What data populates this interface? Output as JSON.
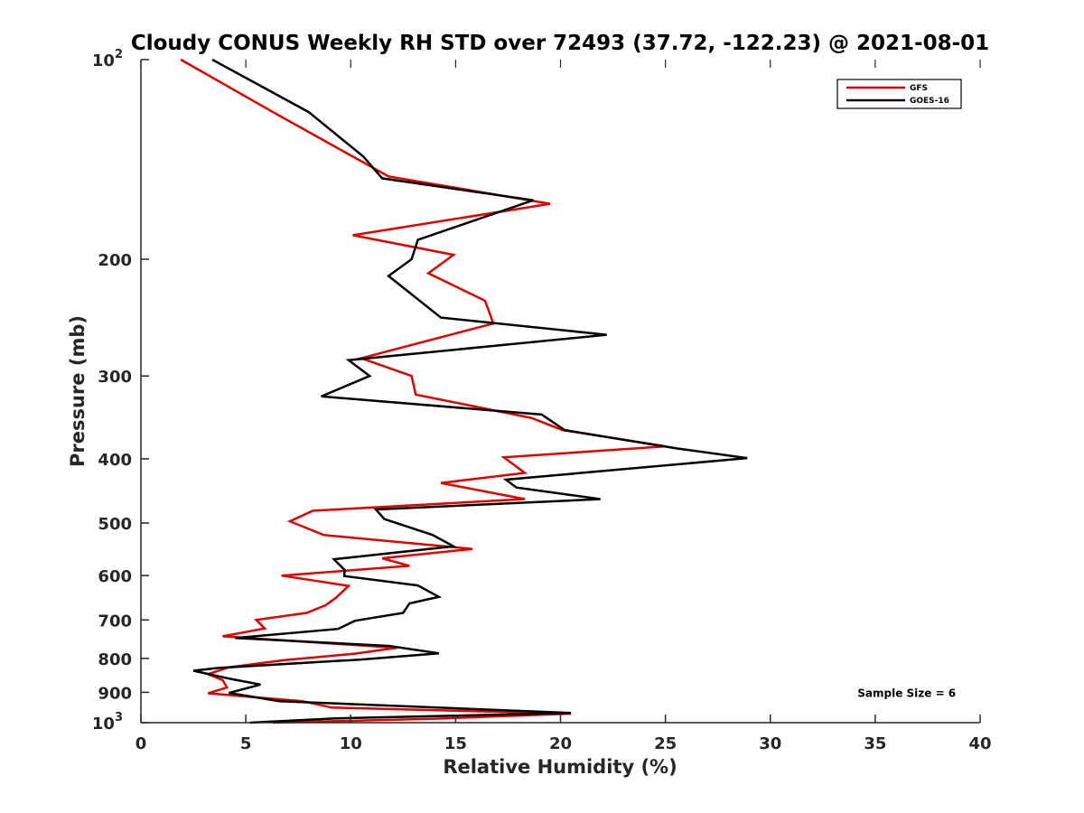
{
  "chart_data": {
    "type": "line",
    "title": "Cloudy CONUS Weekly RH STD over 72493 (37.72, -122.23) @ 2021-08-01",
    "xlabel": "Relative Humidity (%)",
    "ylabel": "Pressure (mb)",
    "xlim": [
      0,
      40
    ],
    "ylim": [
      100,
      1000
    ],
    "yscale": "log",
    "yreversed": true,
    "xticks": [
      0,
      5,
      10,
      15,
      20,
      25,
      30,
      35,
      40
    ],
    "xtick_labels": [
      "0",
      "5",
      "10",
      "15",
      "20",
      "25",
      "30",
      "35",
      "40"
    ],
    "yticks": [
      {
        "value": 100,
        "base": "10",
        "exp": "2"
      },
      {
        "value": 200,
        "base": "200",
        "exp": ""
      },
      {
        "value": 300,
        "base": "300",
        "exp": ""
      },
      {
        "value": 400,
        "base": "400",
        "exp": ""
      },
      {
        "value": 500,
        "base": "500",
        "exp": ""
      },
      {
        "value": 600,
        "base": "600",
        "exp": ""
      },
      {
        "value": 700,
        "base": "700",
        "exp": ""
      },
      {
        "value": 800,
        "base": "800",
        "exp": ""
      },
      {
        "value": 900,
        "base": "900",
        "exp": ""
      },
      {
        "value": 1000,
        "base": "10",
        "exp": "3"
      }
    ],
    "grid": false,
    "legend_position": "top-right",
    "series": [
      {
        "name": "GFS",
        "color": "#e00000",
        "points": [
          [
            1.9,
            100
          ],
          [
            6.5,
            121
          ],
          [
            11.8,
            150
          ],
          [
            19.5,
            165
          ],
          [
            10.1,
            184
          ],
          [
            14.9,
            197
          ],
          [
            13.7,
            210
          ],
          [
            16.4,
            231
          ],
          [
            16.8,
            250
          ],
          [
            10.5,
            282
          ],
          [
            12.9,
            300
          ],
          [
            13.1,
            320
          ],
          [
            18.6,
            347
          ],
          [
            20.1,
            362
          ],
          [
            25.0,
            383
          ],
          [
            17.3,
            398
          ],
          [
            18.3,
            420
          ],
          [
            14.3,
            435
          ],
          [
            18.3,
            460
          ],
          [
            8.2,
            479
          ],
          [
            7.1,
            497
          ],
          [
            8.7,
            521
          ],
          [
            15.8,
            547
          ],
          [
            11.5,
            565
          ],
          [
            12.8,
            580
          ],
          [
            6.7,
            600
          ],
          [
            9.9,
            622
          ],
          [
            9.3,
            648
          ],
          [
            8.8,
            665
          ],
          [
            7.9,
            683
          ],
          [
            5.5,
            700
          ],
          [
            5.9,
            721
          ],
          [
            3.9,
            741
          ],
          [
            12.2,
            771
          ],
          [
            10.2,
            787
          ],
          [
            6.8,
            805
          ],
          [
            4.2,
            825
          ],
          [
            3.2,
            845
          ],
          [
            3.9,
            863
          ],
          [
            4.1,
            885
          ],
          [
            3.2,
            903
          ],
          [
            7.7,
            928
          ],
          [
            9.1,
            949
          ],
          [
            20.5,
            969
          ],
          [
            14.2,
            986
          ],
          [
            6.3,
            1000
          ]
        ]
      },
      {
        "name": "GOES-16",
        "color": "#000000",
        "points": [
          [
            3.4,
            100
          ],
          [
            8.0,
            120
          ],
          [
            10.6,
            140
          ],
          [
            11.5,
            151
          ],
          [
            18.7,
            163
          ],
          [
            13.2,
            187
          ],
          [
            12.9,
            200
          ],
          [
            11.8,
            212
          ],
          [
            14.3,
            245
          ],
          [
            22.2,
            260
          ],
          [
            9.9,
            284
          ],
          [
            10.9,
            300
          ],
          [
            8.6,
            322
          ],
          [
            19.1,
            343
          ],
          [
            20.2,
            362
          ],
          [
            25.6,
            386
          ],
          [
            28.9,
            399
          ],
          [
            17.4,
            430
          ],
          [
            17.9,
            442
          ],
          [
            21.9,
            460
          ],
          [
            11.2,
            477
          ],
          [
            11.6,
            493
          ],
          [
            13.9,
            521
          ],
          [
            14.9,
            542
          ],
          [
            9.2,
            567
          ],
          [
            9.7,
            588
          ],
          [
            9.7,
            601
          ],
          [
            13.2,
            621
          ],
          [
            14.2,
            646
          ],
          [
            12.8,
            661
          ],
          [
            12.5,
            683
          ],
          [
            10.2,
            702
          ],
          [
            9.4,
            722
          ],
          [
            4.5,
            745
          ],
          [
            11.8,
            766
          ],
          [
            14.2,
            786
          ],
          [
            10.5,
            803
          ],
          [
            3.7,
            827
          ],
          [
            2.5,
            835
          ],
          [
            4.2,
            858
          ],
          [
            5.7,
            876
          ],
          [
            4.2,
            902
          ],
          [
            6.6,
            928
          ],
          [
            20.5,
            967
          ],
          [
            9.3,
            985
          ],
          [
            5.2,
            1000
          ]
        ]
      }
    ],
    "annotations": [
      {
        "text": "Sample Size = 6",
        "x": 36.5,
        "y": 900
      }
    ]
  }
}
